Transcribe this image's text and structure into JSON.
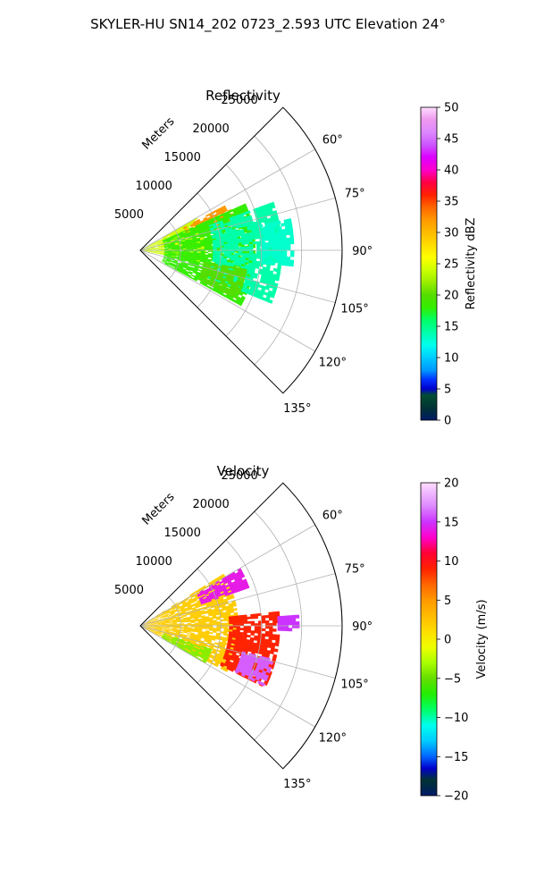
{
  "figure": {
    "suptitle": "SKYLER-HU  SN14_202  0723_2.593 UTC Elevation 24°"
  },
  "chart_data": [
    {
      "type": "polar-sector",
      "title": "Reflectivity",
      "radial_axis_label": "Meters",
      "radial_ticks": [
        5000,
        10000,
        15000,
        20000,
        25000
      ],
      "radial_tick_labels": [
        "5000",
        "10000",
        "15000",
        "20000",
        "25000"
      ],
      "r_max": 25000,
      "azimuth_range_deg": [
        45,
        135
      ],
      "azimuth_ticks": [
        60,
        75,
        90,
        105,
        120,
        135
      ],
      "azimuth_tick_labels": [
        "60°",
        "75°",
        "90°",
        "105°",
        "120°",
        "135°"
      ],
      "grid": true,
      "colorbar": {
        "label": "Reflectivity dBZ",
        "range": [
          0,
          50
        ],
        "ticks": [
          0,
          5,
          10,
          15,
          20,
          25,
          30,
          35,
          40,
          45,
          50
        ],
        "tick_labels": [
          "0",
          "5",
          "10",
          "15",
          "20",
          "25",
          "30",
          "35",
          "40",
          "45",
          "50"
        ],
        "stops": [
          [
            0,
            "#001a66"
          ],
          [
            2,
            "#003333"
          ],
          [
            4,
            "#004d33"
          ],
          [
            5,
            "#0000cc"
          ],
          [
            6.5,
            "#0033ff"
          ],
          [
            8,
            "#0099ff"
          ],
          [
            10,
            "#00ccff"
          ],
          [
            12,
            "#00ffee"
          ],
          [
            14,
            "#00ffaa"
          ],
          [
            16,
            "#00ff66"
          ],
          [
            18,
            "#33ee00"
          ],
          [
            20,
            "#55dd00"
          ],
          [
            22,
            "#99ee00"
          ],
          [
            24,
            "#ccff00"
          ],
          [
            26,
            "#ffff00"
          ],
          [
            28,
            "#ffdd00"
          ],
          [
            30,
            "#ffbb00"
          ],
          [
            32,
            "#ff9900"
          ],
          [
            34,
            "#ff6600"
          ],
          [
            36,
            "#ff2200"
          ],
          [
            38,
            "#ff0044"
          ],
          [
            40,
            "#ff00cc"
          ],
          [
            42,
            "#dd00ff"
          ],
          [
            44,
            "#cc55ff"
          ],
          [
            46,
            "#dd88ff"
          ],
          [
            48,
            "#ee99ee"
          ],
          [
            50,
            "#ffddff"
          ]
        ]
      },
      "echo_regions": [
        {
          "az": [
            60,
            100
          ],
          "r": [
            0,
            8000
          ],
          "value": 24
        },
        {
          "az": [
            62,
            72
          ],
          "r": [
            6000,
            12000
          ],
          "value": 32
        },
        {
          "az": [
            66,
            118
          ],
          "r": [
            3000,
            14000
          ],
          "value": 18
        },
        {
          "az": [
            70,
            112
          ],
          "r": [
            9000,
            17500
          ],
          "value": 14
        },
        {
          "az": [
            78,
            96
          ],
          "r": [
            15000,
            19000
          ],
          "value": 13
        },
        {
          "az": [
            100,
            116
          ],
          "r": [
            8000,
            13000
          ],
          "value": 20
        }
      ]
    },
    {
      "type": "polar-sector",
      "title": "Velocity",
      "radial_axis_label": "Meters",
      "radial_ticks": [
        5000,
        10000,
        15000,
        20000,
        25000
      ],
      "radial_tick_labels": [
        "5000",
        "10000",
        "15000",
        "20000",
        "25000"
      ],
      "r_max": 25000,
      "azimuth_range_deg": [
        45,
        135
      ],
      "azimuth_ticks": [
        60,
        75,
        90,
        105,
        120,
        135
      ],
      "azimuth_tick_labels": [
        "60°",
        "75°",
        "90°",
        "105°",
        "120°",
        "135°"
      ],
      "grid": true,
      "colorbar": {
        "label": "Velocity (m/s)",
        "range": [
          -20,
          20
        ],
        "ticks": [
          -20,
          -15,
          -10,
          -5,
          0,
          5,
          10,
          15,
          20
        ],
        "tick_labels": [
          "−20",
          "−15",
          "−10",
          "−5",
          "0",
          "5",
          "10",
          "15",
          "20"
        ],
        "stops": [
          [
            -20,
            "#001a66"
          ],
          [
            -18,
            "#003333"
          ],
          [
            -16.5,
            "#0000cc"
          ],
          [
            -15,
            "#0066ff"
          ],
          [
            -13,
            "#00ccff"
          ],
          [
            -11,
            "#00ffee"
          ],
          [
            -9,
            "#00ff66"
          ],
          [
            -7,
            "#22ee00"
          ],
          [
            -5,
            "#66dd00"
          ],
          [
            -3,
            "#aaff00"
          ],
          [
            -1,
            "#eeff00"
          ],
          [
            1,
            "#ffdd00"
          ],
          [
            3,
            "#ffbb00"
          ],
          [
            5,
            "#ff9900"
          ],
          [
            7,
            "#ff6600"
          ],
          [
            9,
            "#ff2200"
          ],
          [
            11,
            "#ff0033"
          ],
          [
            13,
            "#ff00cc"
          ],
          [
            15,
            "#cc33ff"
          ],
          [
            17,
            "#dd88ff"
          ],
          [
            20,
            "#ffddff"
          ]
        ]
      },
      "echo_regions": [
        {
          "az": [
            58,
            118
          ],
          "r": [
            0,
            12000
          ],
          "value": 2
        },
        {
          "az": [
            60,
            70
          ],
          "r": [
            8000,
            14000
          ],
          "value": 14
        },
        {
          "az": [
            84,
            116
          ],
          "r": [
            11000,
            17000
          ],
          "value": 9
        },
        {
          "az": [
            104,
            116
          ],
          "r": [
            13000,
            17000
          ],
          "value": 16
        },
        {
          "az": [
            108,
            120
          ],
          "r": [
            3000,
            9000
          ],
          "value": -4
        },
        {
          "az": [
            86,
            92
          ],
          "r": [
            17000,
            19500
          ],
          "value": 15
        }
      ]
    }
  ]
}
